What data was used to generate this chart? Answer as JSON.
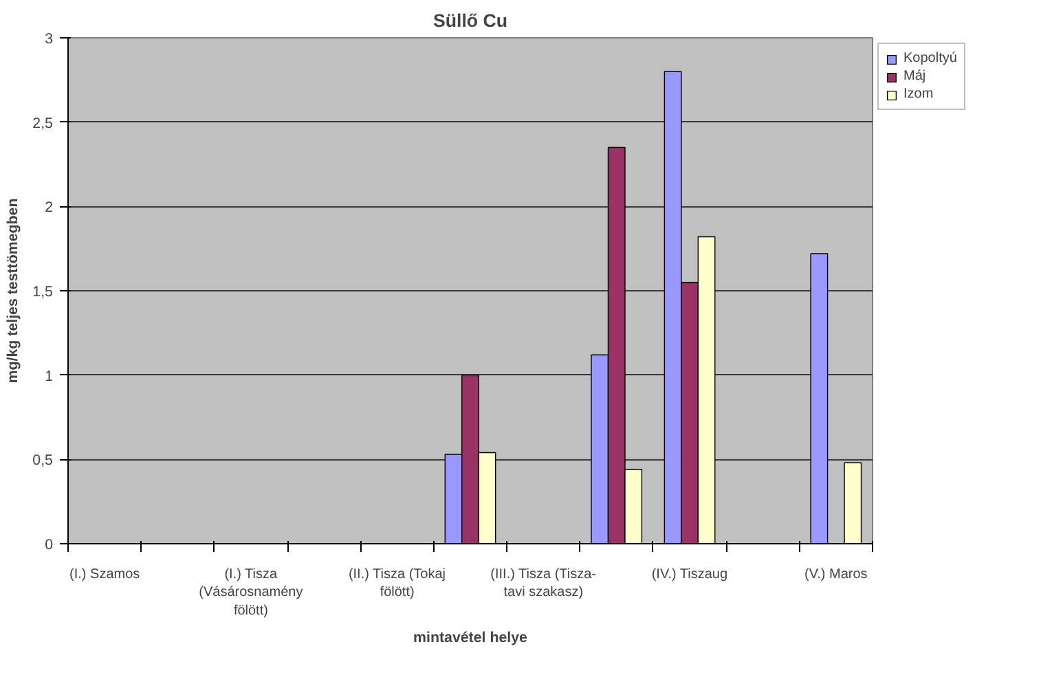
{
  "chart_data": {
    "type": "bar",
    "title": "Süllő Cu",
    "xlabel": "mintavétel helye",
    "ylabel": "mg/kg teljes testtömegben",
    "categories": [
      "(I.) Szamos",
      null,
      "(I.) Tisza\n(Vásárosnamény\nfölött)",
      null,
      "(II.) Tisza (Tokaj\nfölött)",
      null,
      "(III.) Tisza (Tisza-\ntavi szakasz)",
      null,
      "(IV.) Tiszaug",
      null,
      "(V.) Maros"
    ],
    "series": [
      {
        "name": "Kopoltyú",
        "color": "#9999ff",
        "values": [
          null,
          null,
          null,
          null,
          null,
          0.53,
          null,
          1.12,
          2.8,
          null,
          1.72
        ]
      },
      {
        "name": "Máj",
        "color": "#993366",
        "values": [
          null,
          null,
          null,
          null,
          null,
          1.0,
          null,
          2.35,
          1.55,
          null,
          null
        ]
      },
      {
        "name": "Izom",
        "color": "#ffffcc",
        "values": [
          null,
          null,
          null,
          null,
          null,
          0.54,
          null,
          0.44,
          1.82,
          null,
          0.48
        ]
      }
    ],
    "ylim": [
      0,
      3
    ],
    "yticks": [
      0,
      {
        "value": 0.5,
        "label": "0,5"
      },
      1,
      {
        "value": 1.5,
        "label": "1,5"
      },
      2,
      {
        "value": 2.5,
        "label": "2,5"
      },
      3
    ],
    "grid": "y",
    "legend": "top right"
  }
}
